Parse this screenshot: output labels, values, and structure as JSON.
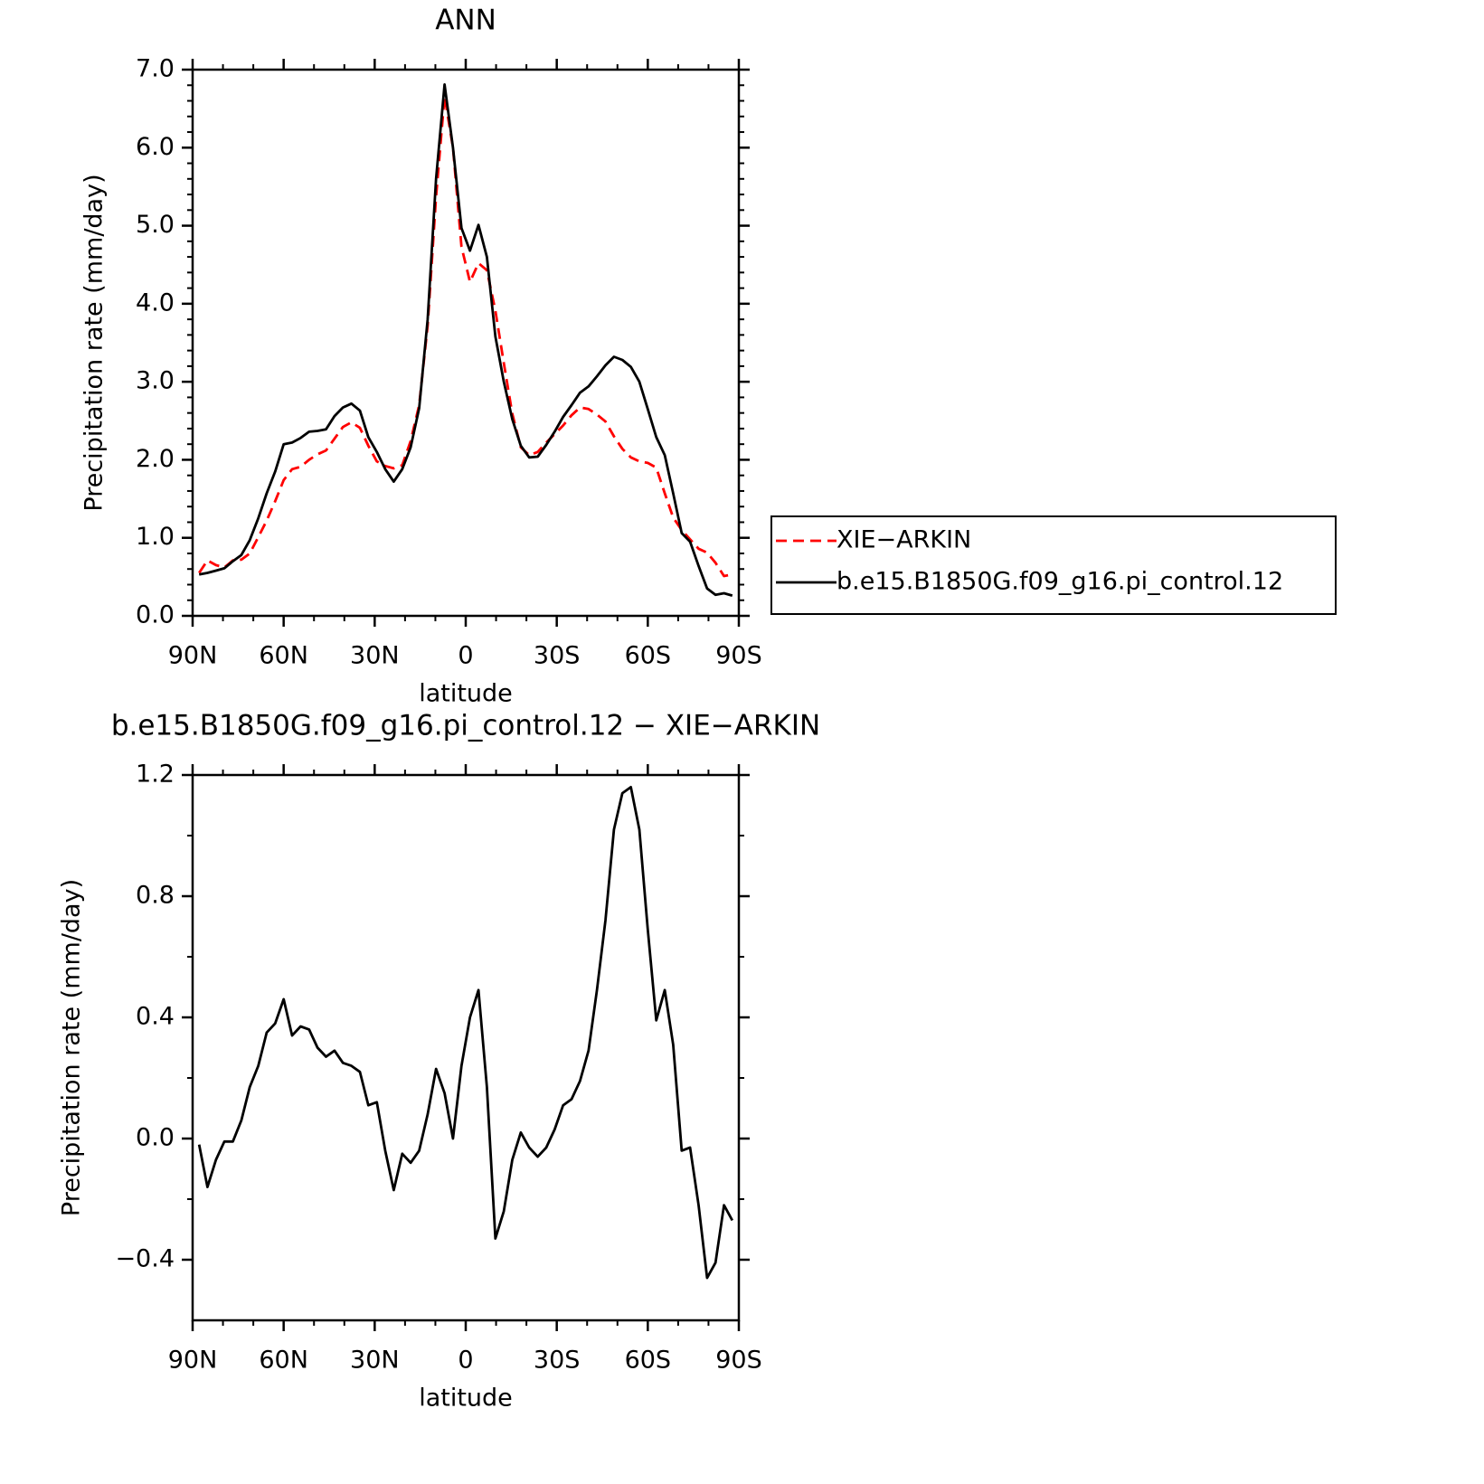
{
  "chart_data": [
    {
      "type": "line",
      "title": "ANN",
      "xlabel": "latitude",
      "ylabel": "Precipitation rate (mm/day)",
      "xlim": [
        90,
        -90
      ],
      "xticks": [
        {
          "value": 90,
          "label": "90N"
        },
        {
          "value": 60,
          "label": "60N"
        },
        {
          "value": 30,
          "label": "30N"
        },
        0,
        {
          "value": -30,
          "label": "30S"
        },
        {
          "value": -60,
          "label": "60S"
        },
        {
          "value": -90,
          "label": "90S"
        }
      ],
      "xminorticks": [
        80,
        70,
        50,
        40,
        20,
        10,
        -10,
        -20,
        -40,
        -50,
        -70,
        -80
      ],
      "ylim": [
        0,
        7
      ],
      "yticks": [
        {
          "value": 0,
          "label": "0.0"
        },
        {
          "value": 1,
          "label": "1.0"
        },
        {
          "value": 2,
          "label": "2.0"
        },
        {
          "value": 3,
          "label": "3.0"
        },
        {
          "value": 4,
          "label": "4.0"
        },
        {
          "value": 5,
          "label": "5.0"
        },
        {
          "value": 6,
          "label": "6.0"
        },
        {
          "value": 7,
          "label": "7.0"
        }
      ],
      "yminorticks": [
        0.2,
        0.4,
        0.6,
        0.8,
        1.2,
        1.4,
        1.6,
        1.8,
        2.2,
        2.4,
        2.6,
        2.8,
        3.2,
        3.4,
        3.6,
        3.8,
        4.2,
        4.4,
        4.6,
        4.8,
        5.2,
        5.4,
        5.6,
        5.8,
        6.2,
        6.4,
        6.6,
        6.8
      ],
      "legend": "right",
      "x": [
        87.86,
        85.1,
        82.31,
        79.53,
        76.74,
        73.95,
        71.16,
        68.37,
        65.58,
        62.79,
        60.0,
        57.21,
        54.42,
        51.63,
        48.84,
        46.04,
        43.25,
        40.46,
        37.67,
        34.88,
        32.09,
        29.3,
        26.51,
        23.72,
        20.93,
        18.14,
        15.35,
        12.56,
        9.77,
        6.98,
        4.19,
        1.4,
        -1.4,
        -4.19,
        -6.98,
        -9.77,
        -12.56,
        -15.35,
        -18.14,
        -20.93,
        -23.72,
        -26.51,
        -29.3,
        -32.09,
        -34.88,
        -37.67,
        -40.46,
        -43.25,
        -46.04,
        -48.84,
        -51.63,
        -54.42,
        -57.21,
        -60.0,
        -62.79,
        -65.58,
        -68.37,
        -71.16,
        -73.95,
        -76.74,
        -79.53,
        -82.31,
        -85.1,
        -87.86
      ],
      "series": [
        {
          "name": "XIE−ARKIN",
          "color": "#ff0000",
          "line_style": "dashed",
          "values": [
            0.55,
            0.71,
            0.65,
            0.62,
            0.71,
            0.72,
            0.8,
            1.01,
            1.22,
            1.47,
            1.74,
            1.88,
            1.91,
            2.0,
            2.07,
            2.12,
            2.27,
            2.42,
            2.48,
            2.41,
            2.18,
            1.98,
            1.92,
            1.89,
            1.93,
            2.24,
            2.7,
            3.72,
            5.37,
            6.66,
            6.0,
            4.73,
            4.28,
            4.52,
            4.43,
            3.91,
            3.24,
            2.59,
            2.16,
            2.06,
            2.1,
            2.22,
            2.33,
            2.44,
            2.57,
            2.67,
            2.65,
            2.58,
            2.49,
            2.3,
            2.14,
            2.03,
            1.98,
            1.96,
            1.9,
            1.57,
            1.26,
            1.1,
            0.98,
            0.86,
            0.81,
            0.68,
            0.51,
            0.53
          ]
        },
        {
          "name": "b.e15.B1850G.f09_g16.pi_control.12",
          "color": "#000000",
          "line_style": "solid",
          "values": [
            0.53,
            0.55,
            0.58,
            0.61,
            0.7,
            0.78,
            0.97,
            1.25,
            1.57,
            1.85,
            2.2,
            2.22,
            2.28,
            2.36,
            2.37,
            2.39,
            2.56,
            2.67,
            2.72,
            2.63,
            2.29,
            2.1,
            1.88,
            1.72,
            1.88,
            2.16,
            2.66,
            3.8,
            5.6,
            6.81,
            6.0,
            4.97,
            4.68,
            5.01,
            4.6,
            3.58,
            3.0,
            2.52,
            2.18,
            2.03,
            2.04,
            2.19,
            2.36,
            2.55,
            2.7,
            2.86,
            2.94,
            3.07,
            3.21,
            3.32,
            3.28,
            3.19,
            3.0,
            2.65,
            2.29,
            2.06,
            1.57,
            1.06,
            0.95,
            0.64,
            0.35,
            0.27,
            0.29,
            0.26
          ]
        }
      ]
    },
    {
      "type": "line",
      "title": "b.e15.B1850G.f09_g16.pi_control.12 − XIE−ARKIN",
      "xlabel": "latitude",
      "ylabel": "Precipitation rate (mm/day)",
      "xlim": [
        90,
        -90
      ],
      "xticks": [
        {
          "value": 90,
          "label": "90N"
        },
        {
          "value": 60,
          "label": "60N"
        },
        {
          "value": 30,
          "label": "30N"
        },
        0,
        {
          "value": -30,
          "label": "30S"
        },
        {
          "value": -60,
          "label": "60S"
        },
        {
          "value": -90,
          "label": "90S"
        }
      ],
      "xminorticks": [
        80,
        70,
        50,
        40,
        20,
        10,
        -10,
        -20,
        -40,
        -50,
        -70,
        -80
      ],
      "ylim": [
        -0.6,
        1.2
      ],
      "yticks": [
        {
          "value": -0.4,
          "label": "−0.4"
        },
        {
          "value": 0,
          "label": "0.0"
        },
        0.4,
        0.8,
        1.2
      ],
      "yminorticks": [
        -0.2,
        0.2,
        0.6,
        1.0
      ],
      "x": [
        87.86,
        85.1,
        82.31,
        79.53,
        76.74,
        73.95,
        71.16,
        68.37,
        65.58,
        62.79,
        60.0,
        57.21,
        54.42,
        51.63,
        48.84,
        46.04,
        43.25,
        40.46,
        37.67,
        34.88,
        32.09,
        29.3,
        26.51,
        23.72,
        20.93,
        18.14,
        15.35,
        12.56,
        9.77,
        6.98,
        4.19,
        1.4,
        -1.4,
        -4.19,
        -6.98,
        -9.77,
        -12.56,
        -15.35,
        -18.14,
        -20.93,
        -23.72,
        -26.51,
        -29.3,
        -32.09,
        -34.88,
        -37.67,
        -40.46,
        -43.25,
        -46.04,
        -48.84,
        -51.63,
        -54.42,
        -57.21,
        -60.0,
        -62.79,
        -65.58,
        -68.37,
        -71.16,
        -73.95,
        -76.74,
        -79.53,
        -82.31,
        -85.1,
        -87.86
      ],
      "series": [
        {
          "color": "#000000",
          "line_style": "solid",
          "values": [
            -0.02,
            -0.16,
            -0.07,
            -0.01,
            -0.01,
            0.06,
            0.17,
            0.24,
            0.35,
            0.38,
            0.46,
            0.34,
            0.37,
            0.36,
            0.3,
            0.27,
            0.29,
            0.25,
            0.24,
            0.22,
            0.11,
            0.12,
            -0.04,
            -0.17,
            -0.05,
            -0.08,
            -0.04,
            0.08,
            0.23,
            0.15,
            0.0,
            0.24,
            0.4,
            0.49,
            0.17,
            -0.33,
            -0.24,
            -0.07,
            0.02,
            -0.03,
            -0.06,
            -0.03,
            0.03,
            0.11,
            0.13,
            0.19,
            0.29,
            0.49,
            0.72,
            1.02,
            1.14,
            1.16,
            1.02,
            0.69,
            0.39,
            0.49,
            0.31,
            -0.04,
            -0.03,
            -0.22,
            -0.46,
            -0.41,
            -0.22,
            -0.27
          ]
        }
      ]
    }
  ]
}
